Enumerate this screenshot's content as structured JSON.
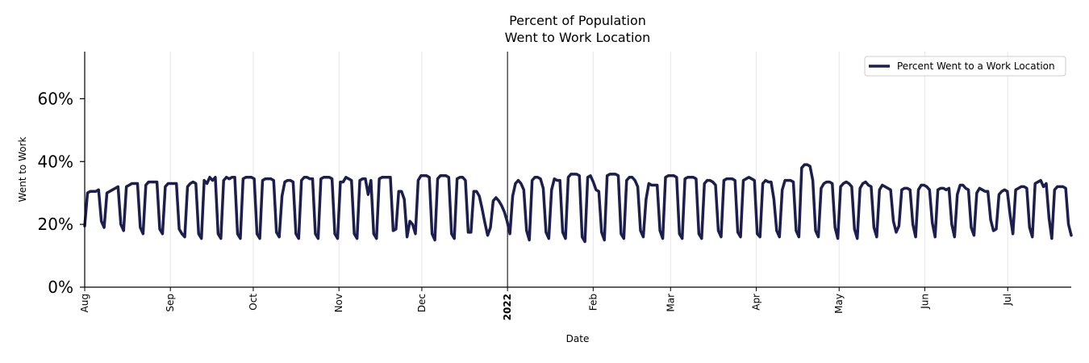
{
  "chart_data": {
    "type": "line",
    "title": "Percent of Population",
    "subtitle": "Went to Work Location",
    "xlabel": "Date",
    "ylabel": "Went to Work",
    "ylim": [
      0,
      75
    ],
    "yticks": [
      {
        "value": 0,
        "label": "0%"
      },
      {
        "value": 20,
        "label": "20%"
      },
      {
        "value": 40,
        "label": "40%"
      },
      {
        "value": 60,
        "label": "60%"
      }
    ],
    "xrange_days": [
      0,
      357
    ],
    "xticks": [
      {
        "day": 0,
        "label": "Aug",
        "bold": false
      },
      {
        "day": 31,
        "label": "Sep",
        "bold": false
      },
      {
        "day": 61,
        "label": "Oct",
        "bold": false
      },
      {
        "day": 92,
        "label": "Nov",
        "bold": false
      },
      {
        "day": 122,
        "label": "Dec",
        "bold": false
      },
      {
        "day": 153,
        "label": "2022",
        "bold": true
      },
      {
        "day": 184,
        "label": "Feb",
        "bold": false
      },
      {
        "day": 212,
        "label": "Mar",
        "bold": false
      },
      {
        "day": 243,
        "label": "Apr",
        "bold": false
      },
      {
        "day": 273,
        "label": "May",
        "bold": false
      },
      {
        "day": 304,
        "label": "Jun",
        "bold": false
      },
      {
        "day": 334,
        "label": "Jul",
        "bold": false
      }
    ],
    "vline_day": 153,
    "legend": {
      "position": "top-right",
      "label": "Percent Went to a Work Location"
    },
    "colors": {
      "line": "#1c1f4d",
      "grid": "#e6e6e6",
      "axis": "#000000"
    },
    "series": [
      {
        "name": "Percent Went to a Work Location",
        "start_date": "2021-08-01",
        "values": [
          19.5,
          30,
          30.5,
          30.5,
          30.5,
          31,
          21,
          19,
          30,
          30.5,
          31,
          31.5,
          32,
          20,
          18,
          32,
          32.5,
          33,
          33,
          33,
          19,
          17,
          32.5,
          33.5,
          33.5,
          33.5,
          33.5,
          18.5,
          17,
          32,
          33,
          33,
          33,
          33,
          18.5,
          17,
          16,
          32,
          33,
          33.5,
          33,
          17,
          15.5,
          34,
          33,
          35,
          34,
          35,
          17,
          15.5,
          34,
          35,
          34.5,
          35,
          35,
          17,
          15.5,
          34.5,
          35,
          35,
          35,
          34.5,
          17,
          15.5,
          34,
          34.5,
          34.5,
          34.5,
          34,
          17.5,
          16,
          29,
          33.5,
          34,
          34,
          33.5,
          17,
          15.5,
          34,
          35,
          35,
          34.5,
          34.5,
          17,
          15.5,
          34.5,
          35,
          35,
          35,
          34.5,
          17,
          15.5,
          33.5,
          33.5,
          35,
          34.5,
          34,
          17,
          15.5,
          34,
          34.5,
          34.5,
          29.5,
          34,
          17,
          15.5,
          34.5,
          35,
          35,
          35,
          35,
          18,
          18.5,
          30.5,
          30.5,
          28,
          16,
          21,
          20,
          17,
          34,
          35.5,
          35.5,
          35.5,
          35,
          17,
          15,
          34.5,
          35.5,
          35.5,
          35.5,
          35,
          17,
          15.5,
          34.5,
          35,
          35,
          34,
          17.5,
          17.5,
          30.5,
          30.5,
          29,
          25,
          20.5,
          16.5,
          19,
          27.5,
          28.5,
          27.5,
          26,
          24,
          21,
          17,
          29,
          33,
          34,
          33,
          31,
          18,
          15,
          34,
          35,
          35,
          34.5,
          31.5,
          17.5,
          15.5,
          31,
          34.5,
          34,
          34,
          17.5,
          15.5,
          35,
          36,
          36,
          36,
          35.5,
          16,
          14.5,
          35,
          35.5,
          33.5,
          31,
          30.5,
          17.5,
          15,
          35.5,
          36,
          36,
          36,
          35.5,
          17,
          15.5,
          34,
          35,
          35,
          34,
          32,
          18,
          16,
          28,
          33,
          32.5,
          32.5,
          32.5,
          18,
          15.5,
          35,
          35.5,
          35.5,
          35.5,
          35,
          17,
          15.5,
          34.5,
          35,
          35,
          35,
          34.5,
          17,
          15.5,
          33,
          34,
          34,
          33.5,
          32.5,
          18,
          16,
          34,
          34.5,
          34.5,
          34.5,
          34,
          17.5,
          16,
          34,
          34.5,
          35,
          34.5,
          34,
          17,
          16,
          33,
          34,
          33.5,
          33.5,
          28,
          18,
          16,
          31,
          34,
          34,
          34,
          33.5,
          18,
          16,
          38,
          39,
          39,
          38.5,
          34,
          18,
          16,
          31.5,
          33,
          33.5,
          33.5,
          33,
          19,
          15.5,
          32,
          33,
          33.5,
          33,
          32,
          18.5,
          15.5,
          31.5,
          33,
          33.5,
          32.5,
          32,
          19,
          16,
          31,
          32.5,
          32,
          31.5,
          31,
          21,
          17.5,
          19.5,
          31,
          31.5,
          31.5,
          31,
          20,
          16,
          31,
          32.5,
          32.5,
          32,
          31,
          20.5,
          16,
          31,
          31.5,
          31.5,
          31,
          31.5,
          20,
          16,
          29.5,
          32.5,
          32.5,
          31.5,
          31,
          19,
          16.5,
          30,
          31.5,
          31,
          30.5,
          30.5,
          21.5,
          18,
          18.5,
          29.5,
          30.5,
          31,
          30.5,
          23,
          17,
          31,
          31.5,
          32,
          32,
          31.5,
          19,
          16,
          33,
          33.5,
          34,
          32,
          33,
          22,
          15.5,
          31,
          32,
          32,
          32,
          31.5,
          20,
          16.5
        ]
      }
    ]
  }
}
